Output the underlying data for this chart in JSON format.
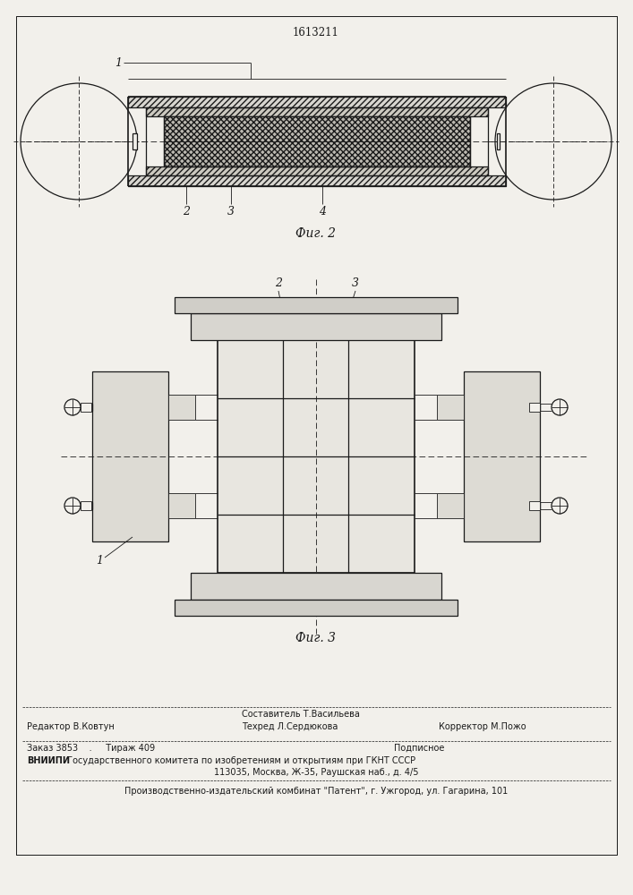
{
  "patent_number": "1613211",
  "fig2_label": "Фиг. 2",
  "fig3_label": "Фиг. 3",
  "bg_color": "#f2f0eb",
  "line_color": "#1a1a1a",
  "footer_sestavitel": "Составитель Т.Васильева",
  "footer_redaktor": "Редактор В.Ковтун",
  "footer_tehred": "Техред Л.Сердюкова",
  "footer_korrektor": "Корректор М.Пожо",
  "footer_zakaz": "Заказ 3853    .     Тираж 409",
  "footer_podpisnoe": "Подписное",
  "footer_vniip_bold": "ВНИИПИ",
  "footer_vniip_rest": " Государственного комитета по изобретениям и открытиям при ГКНТ СССР",
  "footer_addr": "113035, Москва, Ж-35, Раушская наб., д. 4/5",
  "footer_patent": "Производственно-издательский комбинат \"Патент\", г. Ужгород, ул. Гагарина, 101"
}
